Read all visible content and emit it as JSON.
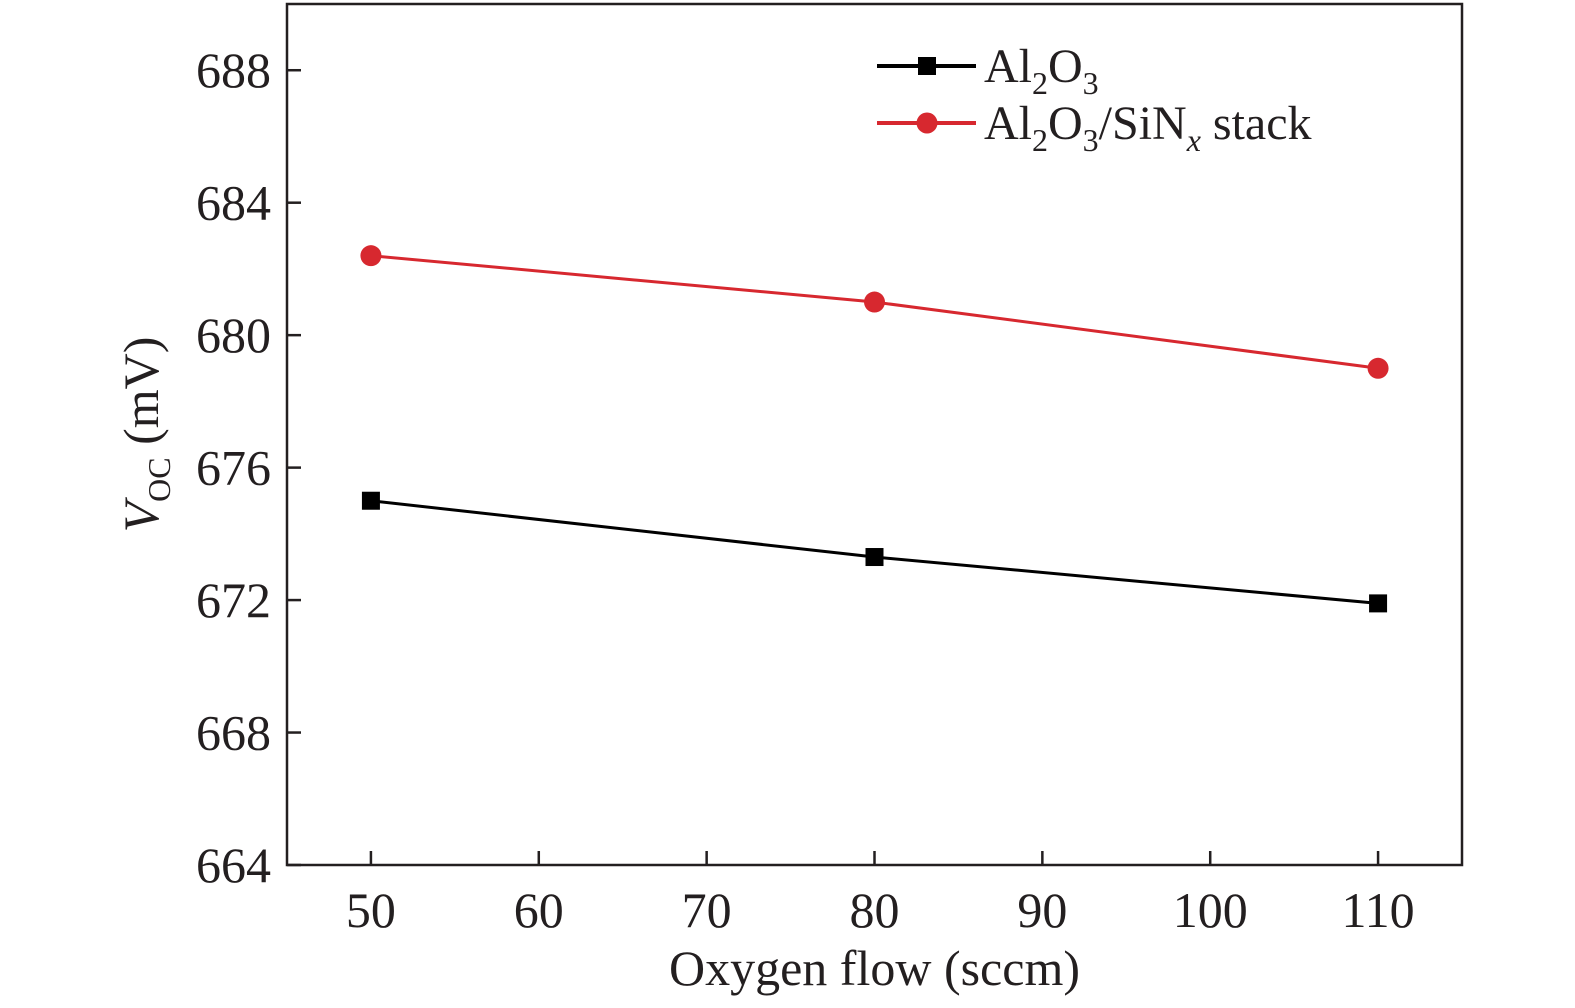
{
  "chart_data": {
    "type": "line",
    "xlabel": "Oxygen flow (sccm)",
    "ylabel": {
      "main": "V",
      "sub": "OC",
      "unit": " (mV)"
    },
    "xlim": [
      45,
      115
    ],
    "ylim": [
      664,
      690
    ],
    "x_ticks": [
      50,
      60,
      70,
      80,
      90,
      100,
      110
    ],
    "y_ticks": [
      664,
      668,
      672,
      676,
      680,
      684,
      688
    ],
    "x": [
      50,
      80,
      110
    ],
    "series": [
      {
        "name": "Al2O3",
        "label_parts": [
          {
            "t": "Al"
          },
          {
            "t": "2",
            "sub": true
          },
          {
            "t": "O"
          },
          {
            "t": "3",
            "sub": true
          }
        ],
        "values": [
          675.0,
          673.3,
          671.9
        ],
        "color": "#000000",
        "marker": "square"
      },
      {
        "name": "Al2O3/SiNx stack",
        "label_parts": [
          {
            "t": "Al"
          },
          {
            "t": "2",
            "sub": true
          },
          {
            "t": "O"
          },
          {
            "t": "3",
            "sub": true
          },
          {
            "t": "/SiN"
          },
          {
            "t": "x",
            "sub": true,
            "italic": true
          },
          {
            "t": " stack"
          }
        ],
        "values": [
          682.4,
          681.0,
          679.0
        ],
        "color": "#d7282f",
        "marker": "circle"
      }
    ],
    "grid": false,
    "legend_position": "top-right"
  }
}
